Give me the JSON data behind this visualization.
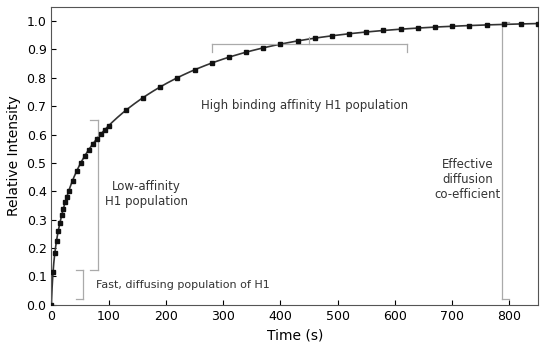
{
  "title": "",
  "xlabel": "Time (s)",
  "ylabel": "Relative Intensity",
  "xlim": [
    0,
    850
  ],
  "ylim": [
    0,
    1.05
  ],
  "xticks": [
    0,
    100,
    200,
    300,
    400,
    500,
    600,
    700,
    800
  ],
  "yticks": [
    0,
    0.1,
    0.2,
    0.3,
    0.4,
    0.5,
    0.6,
    0.7,
    0.8,
    0.9,
    1.0
  ],
  "curve_color": "#333333",
  "marker_color": "#111111",
  "background_color": "#ffffff",
  "bracket_color": "#aaaaaa",
  "frap_params": {
    "A1": 0.12,
    "tau1": 3,
    "A2": 0.28,
    "tau2": 25,
    "A3": 0.6,
    "tau3": 200
  }
}
